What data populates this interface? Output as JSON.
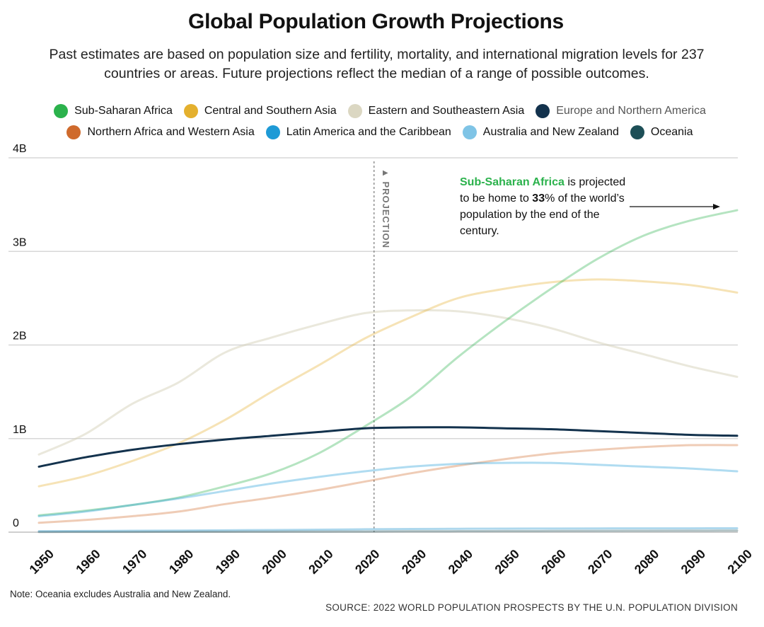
{
  "chart_data": {
    "type": "line",
    "title": "Global Population Growth Projections",
    "subtitle": "Past estimates are based on population size and fertility, mortality, and international migration levels for 237 countries or areas. Future projections reflect the median of a range of possible outcomes.",
    "xlabel": "",
    "ylabel": "",
    "xlim": [
      1950,
      2100
    ],
    "ylim": [
      0,
      4
    ],
    "y_ticks": [
      {
        "value": 0,
        "label": "0"
      },
      {
        "value": 1,
        "label": "1B"
      },
      {
        "value": 2,
        "label": "2B"
      },
      {
        "value": 3,
        "label": "3B"
      },
      {
        "value": 4,
        "label": "4B"
      }
    ],
    "x_ticks": [
      1950,
      1960,
      1970,
      1980,
      1990,
      2000,
      2010,
      2020,
      2030,
      2040,
      2050,
      2060,
      2070,
      2080,
      2090,
      2100
    ],
    "projection_start": 2022,
    "projection_label": "▲ PROJECTION",
    "legend_position": "top",
    "series": [
      {
        "name": "Sub-Saharan Africa",
        "color": "#2bb24c",
        "dot_color": "#2bb24c",
        "opacity": 0.35,
        "x": [
          1950,
          1960,
          1970,
          1980,
          1990,
          2000,
          2010,
          2020,
          2030,
          2040,
          2050,
          2060,
          2070,
          2080,
          2090,
          2100
        ],
        "values": [
          0.18,
          0.23,
          0.29,
          0.37,
          0.49,
          0.63,
          0.84,
          1.13,
          1.45,
          1.87,
          2.25,
          2.6,
          2.92,
          3.17,
          3.33,
          3.44
        ]
      },
      {
        "name": "Central and Southern Asia",
        "color": "#e4b02e",
        "dot_color": "#e4b02e",
        "opacity": 0.35,
        "x": [
          1950,
          1960,
          1970,
          1980,
          1990,
          2000,
          2010,
          2020,
          2030,
          2040,
          2050,
          2060,
          2070,
          2080,
          2090,
          2100
        ],
        "values": [
          0.49,
          0.6,
          0.76,
          0.95,
          1.2,
          1.5,
          1.78,
          2.07,
          2.3,
          2.5,
          2.6,
          2.67,
          2.7,
          2.68,
          2.64,
          2.56
        ]
      },
      {
        "name": "Eastern and Southeastern Asia",
        "color": "#d6d2b9",
        "dot_color": "#dbd7c2",
        "opacity": 0.5,
        "x": [
          1950,
          1960,
          1970,
          1980,
          1990,
          2000,
          2010,
          2020,
          2030,
          2040,
          2050,
          2060,
          2070,
          2080,
          2090,
          2100
        ],
        "values": [
          0.83,
          1.05,
          1.37,
          1.6,
          1.92,
          2.08,
          2.22,
          2.34,
          2.37,
          2.36,
          2.29,
          2.18,
          2.03,
          1.9,
          1.77,
          1.66
        ]
      },
      {
        "name": "Europe and Northern America",
        "color": "#13324d",
        "dot_color": "#13324d",
        "opacity": 1.0,
        "x": [
          1950,
          1960,
          1970,
          1980,
          1990,
          2000,
          2010,
          2020,
          2030,
          2040,
          2050,
          2060,
          2070,
          2080,
          2090,
          2100
        ],
        "values": [
          0.7,
          0.8,
          0.88,
          0.94,
          0.99,
          1.03,
          1.07,
          1.11,
          1.12,
          1.12,
          1.11,
          1.1,
          1.08,
          1.06,
          1.04,
          1.03
        ]
      },
      {
        "name": "Northern Africa and Western Asia",
        "color": "#d26d2d",
        "dot_color": "#cf6a2c",
        "opacity": 0.35,
        "x": [
          1950,
          1960,
          1970,
          1980,
          1990,
          2000,
          2010,
          2020,
          2030,
          2040,
          2050,
          2060,
          2070,
          2080,
          2090,
          2100
        ],
        "values": [
          0.1,
          0.13,
          0.17,
          0.22,
          0.3,
          0.37,
          0.45,
          0.54,
          0.63,
          0.71,
          0.78,
          0.84,
          0.88,
          0.91,
          0.93,
          0.93
        ]
      },
      {
        "name": "Latin America and the Caribbean",
        "color": "#1e9ad6",
        "dot_color": "#1e9ad6",
        "opacity": 0.35,
        "x": [
          1950,
          1960,
          1970,
          1980,
          1990,
          2000,
          2010,
          2020,
          2030,
          2040,
          2050,
          2060,
          2070,
          2080,
          2090,
          2100
        ],
        "values": [
          0.17,
          0.22,
          0.29,
          0.36,
          0.44,
          0.52,
          0.59,
          0.65,
          0.7,
          0.73,
          0.74,
          0.74,
          0.72,
          0.7,
          0.68,
          0.65
        ]
      },
      {
        "name": "Australia and New Zealand",
        "color": "#8cc8e6",
        "dot_color": "#7fc4e6",
        "opacity": 0.7,
        "x": [
          1950,
          1960,
          1970,
          1980,
          1990,
          2000,
          2010,
          2020,
          2030,
          2040,
          2050,
          2060,
          2070,
          2080,
          2090,
          2100
        ],
        "values": [
          0.01,
          0.012,
          0.015,
          0.017,
          0.02,
          0.023,
          0.026,
          0.031,
          0.034,
          0.036,
          0.038,
          0.039,
          0.04,
          0.041,
          0.041,
          0.042
        ]
      },
      {
        "name": "Oceania",
        "color": "#1f5159",
        "dot_color": "#1d4f57",
        "opacity": 0.35,
        "x": [
          1950,
          1960,
          1970,
          1980,
          1990,
          2000,
          2010,
          2020,
          2030,
          2040,
          2050,
          2060,
          2070,
          2080,
          2090,
          2100
        ],
        "values": [
          0.002,
          0.003,
          0.003,
          0.004,
          0.005,
          0.006,
          0.007,
          0.008,
          0.01,
          0.011,
          0.012,
          0.013,
          0.014,
          0.015,
          0.016,
          0.017
        ]
      }
    ],
    "annotation": {
      "highlight": "Sub-Saharan Africa",
      "text_1": " is projected to be home to ",
      "percent": "33",
      "text_2": "% of the world’s population by the end of the century."
    }
  },
  "footer": {
    "note": "Note: Oceania excludes Australia and New Zealand.",
    "source": "SOURCE: 2022 WORLD POPULATION PROSPECTS BY THE U.N. POPULATION DIVISION"
  }
}
